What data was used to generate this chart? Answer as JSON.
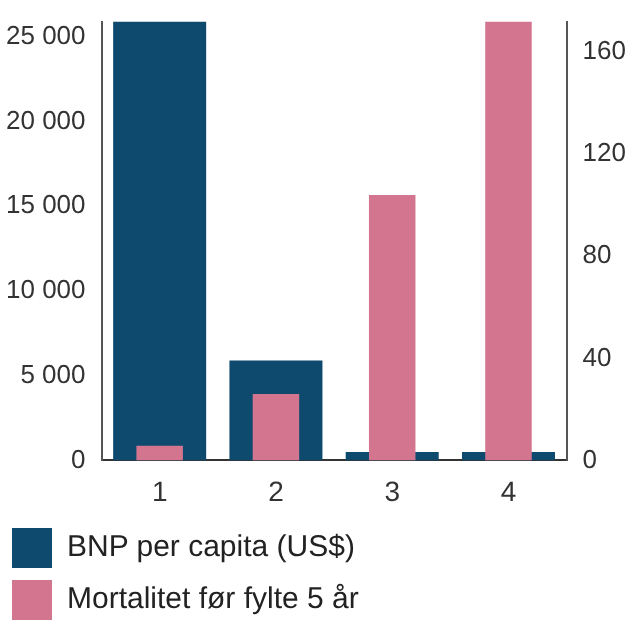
{
  "chart_data": {
    "type": "bar",
    "categories": [
      "1",
      "2",
      "3",
      "4"
    ],
    "series": [
      {
        "name": "BNP per capita (US$)",
        "color": "#0d4a6e",
        "values": [
          25900,
          5900,
          500,
          500
        ]
      },
      {
        "name": "Mortalitet før fylte 5 år",
        "color": "#d4758f",
        "values": [
          5.7,
          26,
          104,
          172
        ],
        "axis": "y2"
      }
    ],
    "ylim": [
      0,
      25900
    ],
    "yticks": [
      0,
      {
        "value": 5000,
        "label": "5 000"
      },
      {
        "value": 10000,
        "label": "10 000"
      },
      {
        "value": 15000,
        "label": "15 000"
      },
      {
        "value": 20000,
        "label": "20 000"
      },
      {
        "value": 25000,
        "label": "25 000"
      }
    ],
    "y2lim": [
      0,
      172
    ],
    "y2ticks": [
      0,
      40,
      80,
      120,
      160
    ],
    "grid": false,
    "legend": "bottom"
  }
}
